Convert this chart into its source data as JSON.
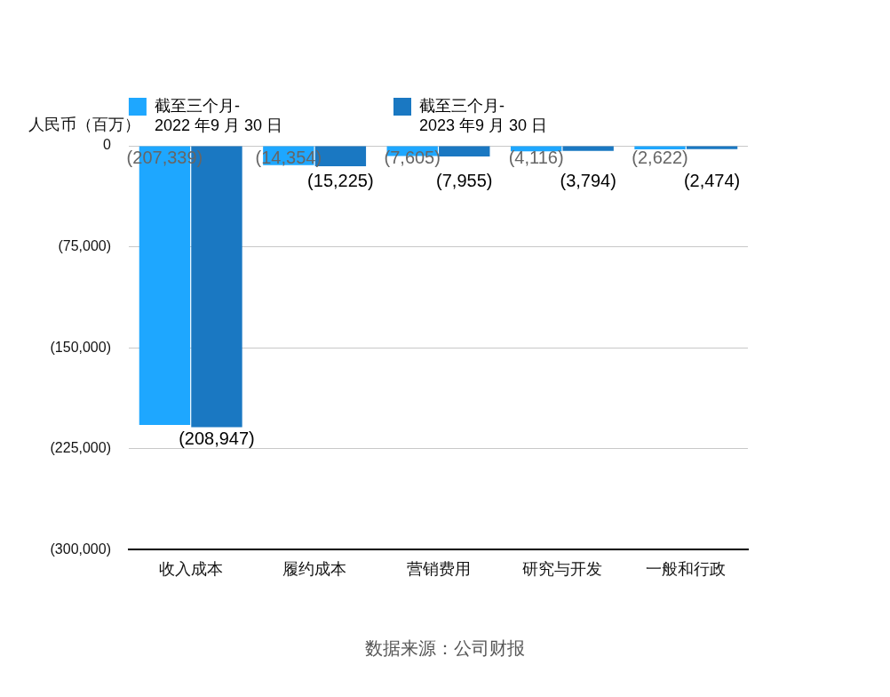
{
  "chart_data": {
    "type": "bar",
    "ylabel": "人民币（百万）",
    "categories": [
      "收入成本",
      "履约成本",
      "营销费用",
      "研究与开发",
      "一般和行政"
    ],
    "series": [
      {
        "name": "截至三个月-\n2022 年9 月 30 日",
        "color": "#1ea7ff",
        "values": [
          -207339,
          -14354,
          -7605,
          -4116,
          -2622
        ],
        "value_labels": [
          "(207,339)",
          "(14,354)",
          "(7,605)",
          "(4,116)",
          "(2,622)"
        ]
      },
      {
        "name": "截至三个月-\n2023 年9 月 30 日",
        "color": "#1a78c2",
        "values": [
          -208947,
          -15225,
          -7955,
          -3794,
          -2474
        ],
        "value_labels": [
          "(208,947)",
          "(15,225)",
          "(7,955)",
          "(3,794)",
          "(2,474)"
        ]
      }
    ],
    "ylim": [
      -300000,
      0
    ],
    "yticks": [
      {
        "value": 0,
        "label": "0"
      },
      {
        "value": -75000,
        "label": "(75,000)"
      },
      {
        "value": -150000,
        "label": "(150,000)"
      },
      {
        "value": -225000,
        "label": "(225,000)"
      },
      {
        "value": -300000,
        "label": "(300,000)"
      }
    ],
    "grid": "y",
    "legend": "top",
    "annotations": [
      "数据来源：公司财报"
    ]
  }
}
